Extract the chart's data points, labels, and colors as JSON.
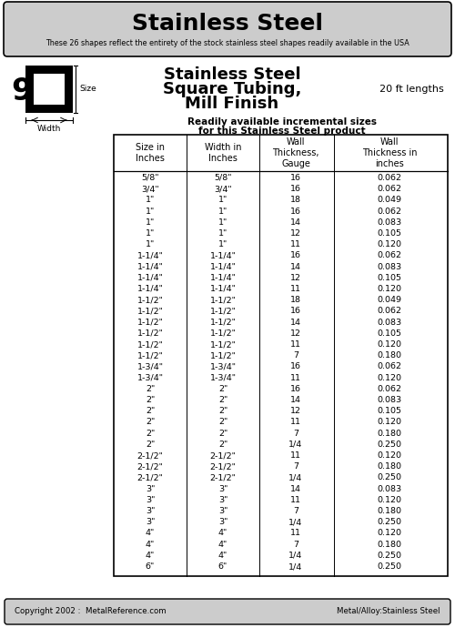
{
  "title": "Stainless Steel",
  "subtitle": "These 26 shapes reflect the entirety of the stock stainless steel shapes readily available in the USA",
  "product_title_line1": "Stainless Steel",
  "product_title_line2": "Square Tubing,",
  "product_title_line3": "Mill Finish",
  "length_label": "20 ft lengths",
  "shape_number": "9",
  "table_header_line1": "Readily available incremental sizes",
  "table_header_line2": "for this Stainless Steel product",
  "col_headers": [
    "Size in\nInches",
    "Width in\nInches",
    "Wall\nThickness,\nGauge",
    "Wall\nThickness in\ninches"
  ],
  "rows": [
    [
      "5/8\"",
      "5/8\"",
      "16",
      "0.062"
    ],
    [
      "3/4\"",
      "3/4\"",
      "16",
      "0.062"
    ],
    [
      "1\"",
      "1\"",
      "18",
      "0.049"
    ],
    [
      "1\"",
      "1\"",
      "16",
      "0.062"
    ],
    [
      "1\"",
      "1\"",
      "14",
      "0.083"
    ],
    [
      "1\"",
      "1\"",
      "12",
      "0.105"
    ],
    [
      "1\"",
      "1\"",
      "11",
      "0.120"
    ],
    [
      "1-1/4\"",
      "1-1/4\"",
      "16",
      "0.062"
    ],
    [
      "1-1/4\"",
      "1-1/4\"",
      "14",
      "0.083"
    ],
    [
      "1-1/4\"",
      "1-1/4\"",
      "12",
      "0.105"
    ],
    [
      "1-1/4\"",
      "1-1/4\"",
      "11",
      "0.120"
    ],
    [
      "1-1/2\"",
      "1-1/2\"",
      "18",
      "0.049"
    ],
    [
      "1-1/2\"",
      "1-1/2\"",
      "16",
      "0.062"
    ],
    [
      "1-1/2\"",
      "1-1/2\"",
      "14",
      "0.083"
    ],
    [
      "1-1/2\"",
      "1-1/2\"",
      "12",
      "0.105"
    ],
    [
      "1-1/2\"",
      "1-1/2\"",
      "11",
      "0.120"
    ],
    [
      "1-1/2\"",
      "1-1/2\"",
      "7",
      "0.180"
    ],
    [
      "1-3/4\"",
      "1-3/4\"",
      "16",
      "0.062"
    ],
    [
      "1-3/4\"",
      "1-3/4\"",
      "11",
      "0.120"
    ],
    [
      "2\"",
      "2\"",
      "16",
      "0.062"
    ],
    [
      "2\"",
      "2\"",
      "14",
      "0.083"
    ],
    [
      "2\"",
      "2\"",
      "12",
      "0.105"
    ],
    [
      "2\"",
      "2\"",
      "11",
      "0.120"
    ],
    [
      "2\"",
      "2\"",
      "7",
      "0.180"
    ],
    [
      "2\"",
      "2\"",
      "1/4",
      "0.250"
    ],
    [
      "2-1/2\"",
      "2-1/2\"",
      "11",
      "0.120"
    ],
    [
      "2-1/2\"",
      "2-1/2\"",
      "7",
      "0.180"
    ],
    [
      "2-1/2\"",
      "2-1/2\"",
      "1/4",
      "0.250"
    ],
    [
      "3\"",
      "3\"",
      "14",
      "0.083"
    ],
    [
      "3\"",
      "3\"",
      "11",
      "0.120"
    ],
    [
      "3\"",
      "3\"",
      "7",
      "0.180"
    ],
    [
      "3\"",
      "3\"",
      "1/4",
      "0.250"
    ],
    [
      "4\"",
      "4\"",
      "11",
      "0.120"
    ],
    [
      "4\"",
      "4\"",
      "7",
      "0.180"
    ],
    [
      "4\"",
      "4\"",
      "1/4",
      "0.250"
    ],
    [
      "6\"",
      "6\"",
      "1/4",
      "0.250"
    ]
  ],
  "footer_left": "Copyright 2002 :  MetalReference.com",
  "footer_right": "Metal/Alloy:Stainless Steel",
  "bg_color": "#ffffff",
  "header_bg": "#cccccc",
  "footer_bg": "#cccccc"
}
